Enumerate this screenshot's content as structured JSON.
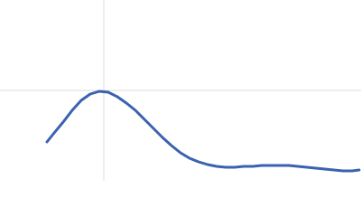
{
  "chart_data": {
    "type": "line",
    "x": [
      0.52,
      0.6,
      0.7,
      0.8,
      0.9,
      1.0,
      1.1,
      1.2,
      1.3,
      1.4,
      1.5,
      1.6,
      1.7,
      1.8,
      1.9,
      2.0,
      2.1,
      2.2,
      2.3,
      2.4,
      2.5,
      2.6,
      2.7,
      2.8,
      2.9,
      3.0,
      3.1,
      3.2,
      3.3,
      3.4,
      3.5,
      3.6,
      3.7,
      3.8,
      3.9,
      3.98
    ],
    "series": [
      {
        "color": "#3a62b0",
        "values": [
          0.43,
          0.53,
          0.65,
          0.78,
          0.89,
          0.96,
          0.99,
          0.98,
          0.93,
          0.86,
          0.78,
          0.68,
          0.58,
          0.48,
          0.39,
          0.31,
          0.25,
          0.21,
          0.18,
          0.16,
          0.15,
          0.15,
          0.16,
          0.16,
          0.17,
          0.17,
          0.17,
          0.17,
          0.16,
          0.15,
          0.14,
          0.13,
          0.12,
          0.11,
          0.11,
          0.12
        ]
      }
    ],
    "xlim": [
      0,
      4
    ],
    "ylim": [
      0,
      2
    ],
    "xticks": [
      1.15
    ],
    "yticks": [
      1
    ],
    "grid": true
  }
}
